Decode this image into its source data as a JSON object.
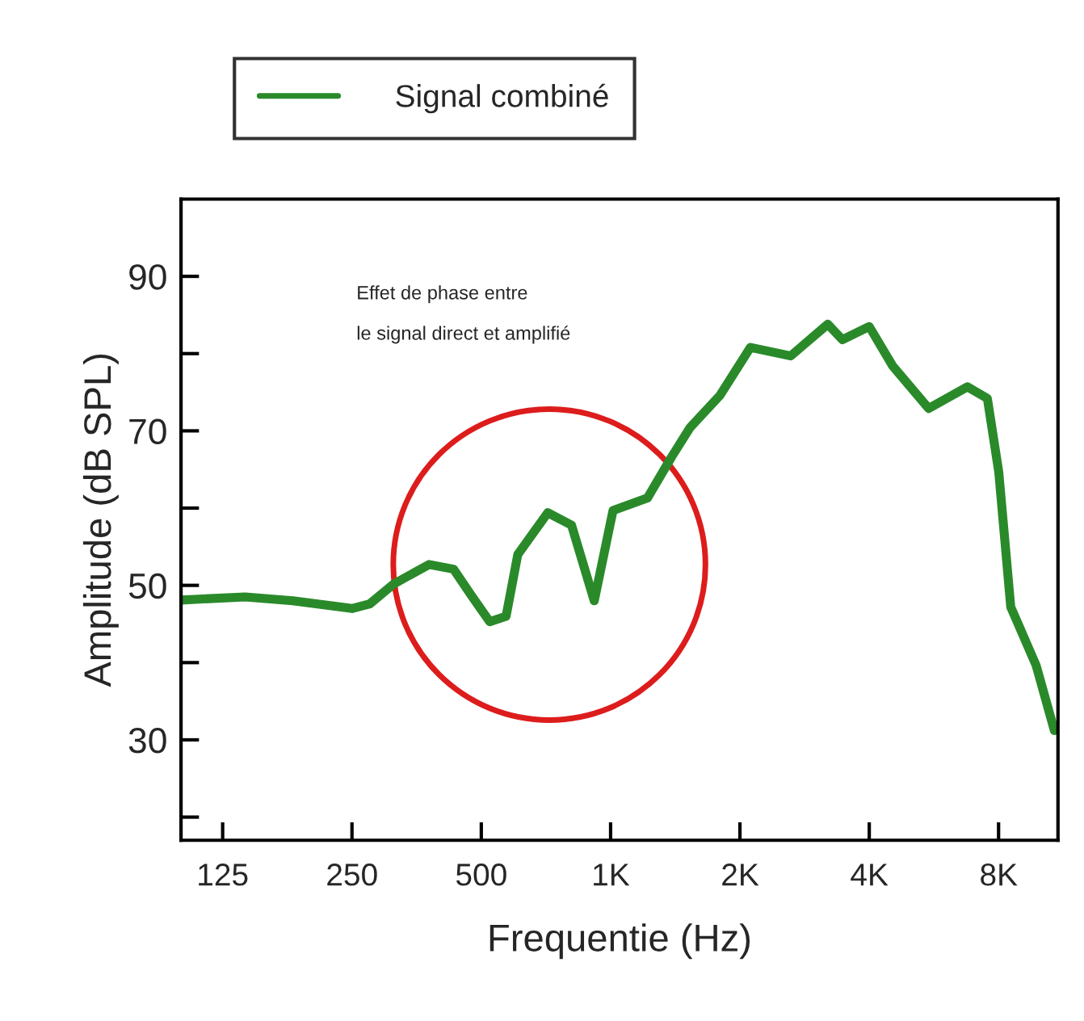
{
  "chart_data": {
    "type": "line",
    "xlabel": "Frequentie (Hz)",
    "ylabel": "Amplitude (dB SPL)",
    "log": "x",
    "legend": "top left",
    "grid": false,
    "marker": "none",
    "line_style": "solid",
    "xlim": [
      100,
      11000
    ],
    "xticks": [
      125,
      250,
      500,
      {
        "value": 1000,
        "label": "1K"
      },
      {
        "value": 2000,
        "label": "2K"
      },
      {
        "value": 4000,
        "label": "4K"
      },
      {
        "value": 8000,
        "label": "8K"
      }
    ],
    "ylim": [
      17,
      100
    ],
    "yticks": [
      {
        "value": 20,
        "label": null
      },
      30,
      {
        "value": 40,
        "label": null
      },
      50,
      {
        "value": 60,
        "label": null
      },
      70,
      {
        "value": 80,
        "label": null
      },
      90
    ],
    "annotations": [
      "Effet de phase entre\nle signal direct et amplifié"
    ],
    "series": [
      {
        "name": "Signal combiné",
        "color": "#2a8a2a",
        "x": [
          100,
          141,
          182,
          250,
          275,
          313,
          378,
          431,
          474,
          523,
          571,
          608,
          714,
          811,
          916,
          1013,
          1218,
          1386,
          1530,
          1797,
          2116,
          2626,
          3202,
          3464,
          4000,
          4536,
          5500,
          6770,
          7534,
          8007,
          8540,
          9790,
          10790
        ],
        "values": [
          48.1,
          48.5,
          48.0,
          47.0,
          47.6,
          50.2,
          52.7,
          52.1,
          48.7,
          45.3,
          46.0,
          54.0,
          59.4,
          57.8,
          48.0,
          59.7,
          61.3,
          66.6,
          70.4,
          74.6,
          80.8,
          79.7,
          83.8,
          81.8,
          83.5,
          78.4,
          72.9,
          75.7,
          74.2,
          64.7,
          47.2,
          39.6,
          31.2
        ]
      }
    ]
  }
}
